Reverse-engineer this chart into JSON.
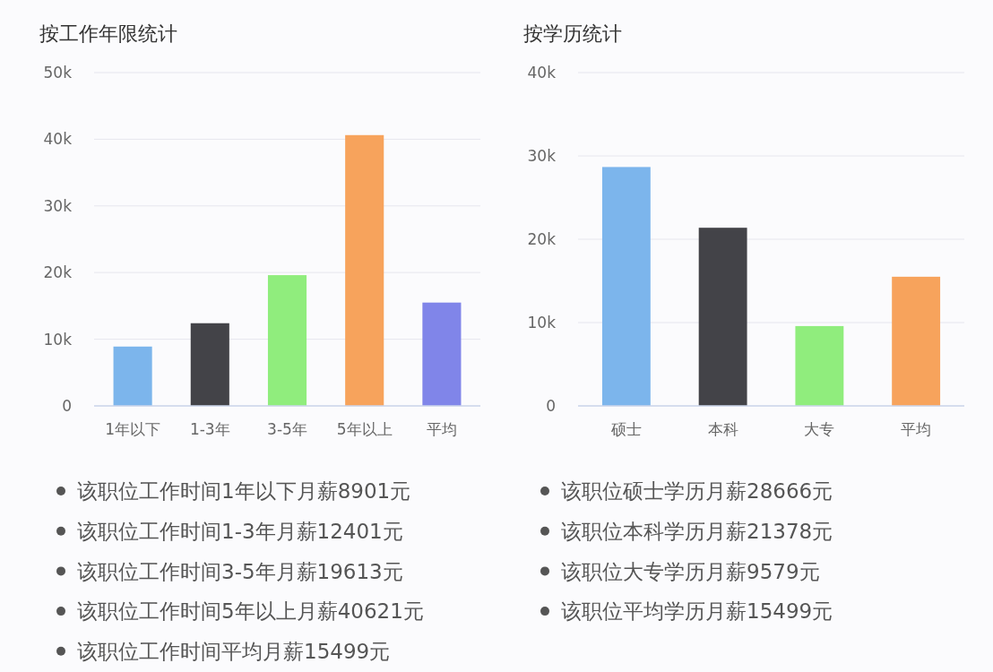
{
  "chart_data": [
    {
      "type": "bar",
      "title": "按工作年限统计",
      "categories": [
        "1年以下",
        "1-3年",
        "3-5年",
        "5年以上",
        "平均"
      ],
      "values": [
        8901,
        12401,
        19613,
        40621,
        15499
      ],
      "colors": [
        "#7cb5ec",
        "#434348",
        "#90ed7d",
        "#f7a35c",
        "#8085e9"
      ],
      "ylim": [
        0,
        50000
      ],
      "yticks": [
        0,
        {
          "value": 10000,
          "label": "10k"
        },
        {
          "value": 20000,
          "label": "20k"
        },
        {
          "value": 30000,
          "label": "30k"
        },
        {
          "value": 40000,
          "label": "40k"
        },
        {
          "value": 50000,
          "label": "50k"
        }
      ],
      "grid": "y",
      "annotations": [
        "该职位工作时间1年以下月薪8901元",
        "该职位工作时间1-3年月薪12401元",
        "该职位工作时间3-5年月薪19613元",
        "该职位工作时间5年以上月薪40621元",
        "该职位工作时间平均月薪15499元"
      ]
    },
    {
      "type": "bar",
      "title": "按学历统计",
      "categories": [
        "硕士",
        "本科",
        "大专",
        "平均"
      ],
      "values": [
        28666,
        21378,
        9579,
        15499
      ],
      "colors": [
        "#7cb5ec",
        "#434348",
        "#90ed7d",
        "#f7a35c"
      ],
      "ylim": [
        0,
        40000
      ],
      "yticks": [
        0,
        {
          "value": 10000,
          "label": "10k"
        },
        {
          "value": 20000,
          "label": "20k"
        },
        {
          "value": 30000,
          "label": "30k"
        },
        {
          "value": 40000,
          "label": "40k"
        }
      ],
      "grid": "y",
      "annotations": [
        "该职位硕士学历月薪28666元",
        "该职位本科学历月薪21378元",
        "该职位大专学历月薪9579元",
        "该职位平均学历月薪15499元"
      ]
    }
  ]
}
